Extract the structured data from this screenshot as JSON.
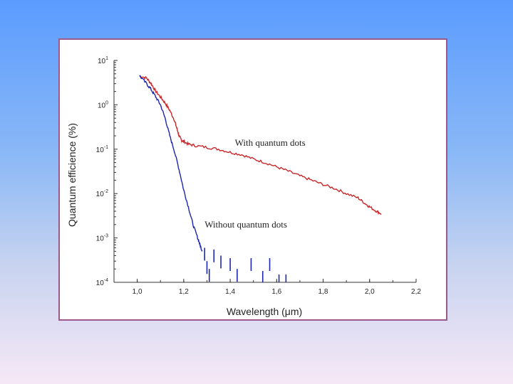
{
  "colors": {
    "series_with": "#c8282a",
    "series_without": "#1c26b0",
    "frame_border": "#9c5a8c",
    "axis": "#333333"
  },
  "chart_data": {
    "type": "line",
    "title": "",
    "xlabel": "Wavelength (μm)",
    "ylabel": "Quantum efficience (%)",
    "xlim": [
      0.9,
      2.2
    ],
    "ylim": [
      0.0001,
      10
    ],
    "yscale": "log",
    "grid": false,
    "x_ticks": [
      "1,0",
      "1,2",
      "1,4",
      "1,6",
      "1,8",
      "2,0",
      "2,2"
    ],
    "x_tick_values": [
      1.0,
      1.2,
      1.4,
      1.6,
      1.8,
      2.0,
      2.2
    ],
    "y_ticks": [
      {
        "base": "10",
        "exp": "1",
        "value": 10
      },
      {
        "base": "10",
        "exp": "0",
        "value": 1
      },
      {
        "base": "10",
        "exp": "-1",
        "value": 0.1
      },
      {
        "base": "10",
        "exp": "-2",
        "value": 0.01
      },
      {
        "base": "10",
        "exp": "-3",
        "value": 0.001
      },
      {
        "base": "10",
        "exp": "-4",
        "value": 0.0001
      }
    ],
    "series": [
      {
        "name": "With quantum dots",
        "x": [
          1.01,
          1.04,
          1.06,
          1.08,
          1.1,
          1.12,
          1.14,
          1.16,
          1.17,
          1.18,
          1.19,
          1.2,
          1.22,
          1.25,
          1.3,
          1.35,
          1.4,
          1.45,
          1.5,
          1.55,
          1.6,
          1.65,
          1.7,
          1.75,
          1.8,
          1.85,
          1.9,
          1.95,
          1.98,
          2.0,
          2.03,
          2.05
        ],
        "y": [
          4.5,
          4.0,
          3.0,
          2.0,
          1.5,
          1.1,
          0.75,
          0.45,
          0.3,
          0.2,
          0.16,
          0.15,
          0.13,
          0.12,
          0.11,
          0.1,
          0.085,
          0.075,
          0.06,
          0.05,
          0.04,
          0.032,
          0.025,
          0.02,
          0.016,
          0.013,
          0.01,
          0.008,
          0.006,
          0.005,
          0.004,
          0.0035
        ]
      },
      {
        "name": "Without quantum dots",
        "x": [
          1.01,
          1.04,
          1.06,
          1.08,
          1.1,
          1.12,
          1.14,
          1.16,
          1.18,
          1.2,
          1.22,
          1.24,
          1.26,
          1.27,
          1.28
        ],
        "y": [
          4.5,
          3.0,
          2.2,
          1.5,
          1.0,
          0.5,
          0.2,
          0.09,
          0.035,
          0.012,
          0.005,
          0.002,
          0.001,
          0.0007,
          0.0005
        ]
      }
    ],
    "scatter_tail": {
      "series": "Without quantum dots",
      "x": [
        1.29,
        1.3,
        1.31,
        1.33,
        1.36,
        1.4,
        1.43,
        1.49,
        1.54,
        1.57,
        1.61,
        1.64
      ],
      "y": [
        0.0006,
        0.0003,
        0.0002,
        0.00055,
        0.0004,
        0.00035,
        0.0002,
        0.00035,
        0.00018,
        0.00035,
        0.00015,
        0.00015
      ]
    },
    "annotations": [
      {
        "text": "With quantum dots",
        "x": 1.42,
        "y": 0.12
      },
      {
        "text": "Without quantum dots",
        "x": 1.29,
        "y": 0.0017
      }
    ]
  }
}
